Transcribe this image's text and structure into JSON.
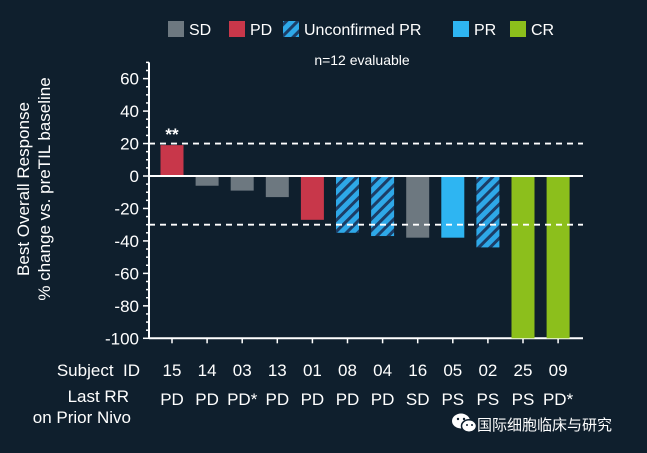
{
  "chart_data": {
    "type": "bar",
    "annotation": "n=12 evaluable",
    "ylabel_line1": "Best Overall Response",
    "ylabel_line2": "% change vs. preTIL baseline",
    "ylim": [
      -100,
      70
    ],
    "yticks": [
      60,
      40,
      20,
      0,
      -20,
      -40,
      -60,
      -80,
      -100
    ],
    "reference_lines": [
      20,
      -30
    ],
    "legend_placement": "top",
    "legend": [
      {
        "key": "SD",
        "label": "SD",
        "color": "#6d7880",
        "hatched": false
      },
      {
        "key": "PD",
        "label": "PD",
        "color": "#c8374a",
        "hatched": false
      },
      {
        "key": "UPR",
        "label": "Unconfirmed PR",
        "color": "#2ea8e8",
        "hatched": true
      },
      {
        "key": "PR",
        "label": "PR",
        "color": "#2eb5f2",
        "hatched": false
      },
      {
        "key": "CR",
        "label": "CR",
        "color": "#8cbf1c",
        "hatched": false
      }
    ],
    "row_label_subject": "Subject  ID",
    "row_label_rr_line1": "Last RR",
    "row_label_rr_line2": "on Prior Nivo",
    "categories": [
      "15",
      "14",
      "03",
      "13",
      "01",
      "08",
      "04",
      "16",
      "05",
      "02",
      "25",
      "09"
    ],
    "values": [
      19,
      -6,
      -9,
      -13,
      -27,
      -35,
      -37,
      -38,
      -38,
      -44,
      -100,
      -100
    ],
    "response": [
      "PD",
      "SD",
      "SD",
      "SD",
      "PD",
      "UPR",
      "UPR",
      "SD",
      "PR",
      "UPR",
      "CR",
      "CR"
    ],
    "last_rr": [
      "PD",
      "PD",
      "PD*",
      "PD",
      "PD",
      "PD",
      "PD",
      "SD",
      "PS",
      "PS",
      "PS",
      "PD*"
    ],
    "bar_annotations": [
      {
        "index": 0,
        "text": "**"
      }
    ]
  },
  "watermark": {
    "icon": "wechat-icon",
    "text": "国际细胞临床与研究"
  }
}
